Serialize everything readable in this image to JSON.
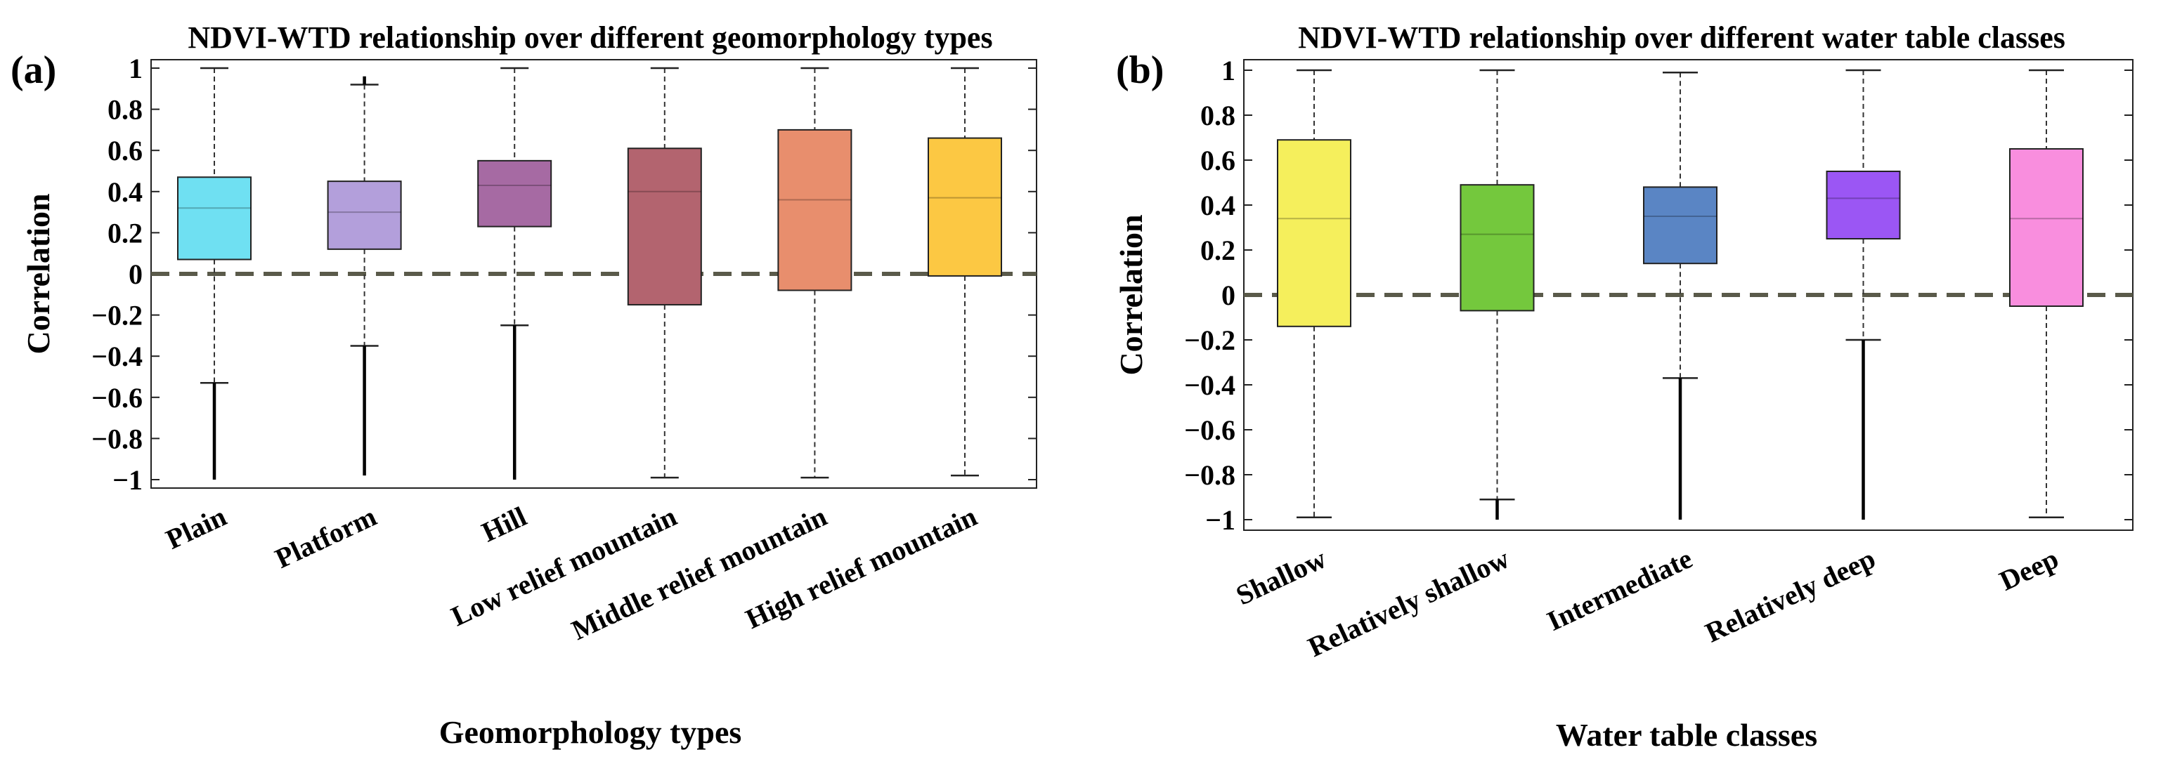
{
  "chart_data": [
    {
      "type": "box",
      "panel_label": "(a)",
      "title": "NDVI-WTD relationship over different geomorphology types",
      "xlabel": "Geomorphology types",
      "ylabel": "Correlation",
      "ylim": [
        -1.05,
        1.05
      ],
      "yticks": [
        1,
        0.8,
        0.6,
        0.4,
        0.2,
        0,
        -0.2,
        -0.4,
        -0.6,
        -0.8,
        -1
      ],
      "ytick_labels": [
        "1",
        "0.8",
        "0.6",
        "0.4",
        "0.2",
        "0",
        "−0.2",
        "−0.4",
        "−0.6",
        "−0.8",
        "−1"
      ],
      "reference_line": 0,
      "categories": [
        "Plain",
        "Platform",
        "Hill",
        "Low relief mountain",
        "Middle relief mountain",
        "High relief mountain"
      ],
      "boxes": [
        {
          "q1": 0.07,
          "median": 0.32,
          "q3": 0.47,
          "whisker_low": -0.53,
          "whisker_high": 1.0,
          "outlier_low": -1.0,
          "outlier_high": null,
          "color": "#6fe0f2"
        },
        {
          "q1": 0.12,
          "median": 0.3,
          "q3": 0.45,
          "whisker_low": -0.35,
          "whisker_high": 0.92,
          "outlier_low": -0.98,
          "outlier_high": 0.96,
          "color": "#b39fdb"
        },
        {
          "q1": 0.23,
          "median": 0.43,
          "q3": 0.55,
          "whisker_low": -0.25,
          "whisker_high": 1.0,
          "outlier_low": -1.0,
          "outlier_high": null,
          "color": "#a66aa3"
        },
        {
          "q1": -0.15,
          "median": 0.4,
          "q3": 0.61,
          "whisker_low": -0.99,
          "whisker_high": 1.0,
          "outlier_low": null,
          "outlier_high": null,
          "color": "#b3646f"
        },
        {
          "q1": -0.08,
          "median": 0.36,
          "q3": 0.7,
          "whisker_low": -0.99,
          "whisker_high": 1.0,
          "outlier_low": null,
          "outlier_high": null,
          "color": "#e88e6d"
        },
        {
          "q1": -0.01,
          "median": 0.37,
          "q3": 0.66,
          "whisker_low": -0.98,
          "whisker_high": 1.0,
          "outlier_low": null,
          "outlier_high": null,
          "color": "#fcc843"
        }
      ]
    },
    {
      "type": "box",
      "panel_label": "(b)",
      "title": "NDVI-WTD relationship over different water table classes",
      "xlabel": "Water table classes",
      "ylabel": "Correlation",
      "ylim": [
        -1.05,
        1.05
      ],
      "yticks": [
        1,
        0.8,
        0.6,
        0.4,
        0.2,
        0,
        -0.2,
        -0.4,
        -0.6,
        -0.8,
        -1
      ],
      "ytick_labels": [
        "1",
        "0.8",
        "0.6",
        "0.4",
        "0.2",
        "0",
        "−0.2",
        "−0.4",
        "−0.6",
        "−0.8",
        "−1"
      ],
      "reference_line": 0,
      "categories": [
        "Shallow",
        "Relatively shallow",
        "Intermediate",
        "Relatively deep",
        "Deep"
      ],
      "boxes": [
        {
          "q1": -0.14,
          "median": 0.34,
          "q3": 0.69,
          "whisker_low": -0.99,
          "whisker_high": 1.0,
          "outlier_low": null,
          "outlier_high": null,
          "color": "#f5ef5c"
        },
        {
          "q1": -0.07,
          "median": 0.27,
          "q3": 0.49,
          "whisker_low": -0.91,
          "whisker_high": 1.0,
          "outlier_low": -1.0,
          "outlier_high": null,
          "color": "#74c83d"
        },
        {
          "q1": 0.14,
          "median": 0.35,
          "q3": 0.48,
          "whisker_low": -0.37,
          "whisker_high": 0.99,
          "outlier_low": -1.0,
          "outlier_high": null,
          "color": "#5a85c4"
        },
        {
          "q1": 0.25,
          "median": 0.43,
          "q3": 0.55,
          "whisker_low": -0.2,
          "whisker_high": 1.0,
          "outlier_low": -1.0,
          "outlier_high": null,
          "color": "#9b56f4"
        },
        {
          "q1": -0.05,
          "median": 0.34,
          "q3": 0.65,
          "whisker_low": -0.99,
          "whisker_high": 1.0,
          "outlier_low": null,
          "outlier_high": null,
          "color": "#f98ede"
        }
      ]
    }
  ]
}
